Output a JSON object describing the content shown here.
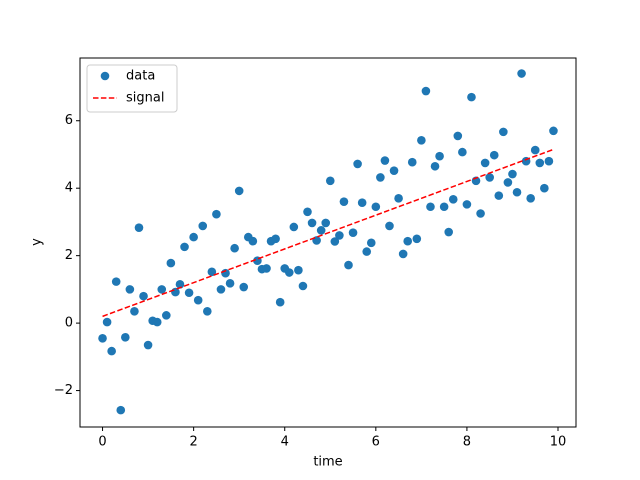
{
  "chart_data": {
    "type": "scatter",
    "xlabel": "time",
    "ylabel": "y",
    "xlim": [
      -0.495,
      10.395
    ],
    "ylim": [
      -3.08,
      7.86
    ],
    "xticks": [
      0,
      2,
      4,
      6,
      8,
      10
    ],
    "yticks": [
      {
        "value": -2,
        "label": "−2"
      },
      0,
      2,
      4,
      6
    ],
    "legend": "upper left",
    "series": [
      {
        "name": "data",
        "color": "#1f77b4",
        "marker": "o",
        "x": [
          0,
          0.1,
          0.2,
          0.3,
          0.4,
          0.5,
          0.6,
          0.7,
          0.8,
          0.9,
          1,
          1.1,
          1.2,
          1.3,
          1.4,
          1.5,
          1.6,
          1.7,
          1.8,
          1.9,
          2,
          2.1,
          2.2,
          2.3,
          2.4,
          2.5,
          2.6,
          2.7,
          2.8,
          2.9,
          3,
          3.1,
          3.2,
          3.3,
          3.4,
          3.5,
          3.6,
          3.7,
          3.8,
          3.9,
          4,
          4.1,
          4.2,
          4.3,
          4.4,
          4.5,
          4.6,
          4.7,
          4.8,
          4.9,
          5,
          5.1,
          5.2,
          5.3,
          5.4,
          5.5,
          5.6,
          5.7,
          5.8,
          5.9,
          6,
          6.1,
          6.2,
          6.3,
          6.4,
          6.5,
          6.6,
          6.7,
          6.8,
          6.9,
          7,
          7.1,
          7.2,
          7.3,
          7.4,
          7.5,
          7.6,
          7.7,
          7.8,
          7.9,
          8,
          8.1,
          8.2,
          8.3,
          8.4,
          8.5,
          8.6,
          8.7,
          8.8,
          8.9,
          9,
          9.1,
          9.2,
          9.3,
          9.4,
          9.5,
          9.6,
          9.7,
          9.8,
          9.9
        ],
        "values": [
          -0.45,
          0.03,
          -0.83,
          1.23,
          -2.58,
          -0.42,
          1.0,
          0.35,
          2.83,
          0.8,
          -0.65,
          0.07,
          0.03,
          1.0,
          0.23,
          1.78,
          0.92,
          1.15,
          2.26,
          0.9,
          2.55,
          0.68,
          2.88,
          0.35,
          1.52,
          3.23,
          1.0,
          1.48,
          1.18,
          2.22,
          3.92,
          1.07,
          2.55,
          2.43,
          1.85,
          1.6,
          1.62,
          2.43,
          2.5,
          0.62,
          1.62,
          1.5,
          2.85,
          1.57,
          1.1,
          3.3,
          2.97,
          2.45,
          2.75,
          2.97,
          4.22,
          2.42,
          2.6,
          3.6,
          1.72,
          2.68,
          4.72,
          3.57,
          2.12,
          2.38,
          3.45,
          4.32,
          4.82,
          2.88,
          4.52,
          3.7,
          2.05,
          2.43,
          4.77,
          2.5,
          5.42,
          6.88,
          3.45,
          4.65,
          4.95,
          3.45,
          2.7,
          3.67,
          5.55,
          5.07,
          3.52,
          6.7,
          4.22,
          3.25,
          4.75,
          4.32,
          4.98,
          3.78,
          5.67,
          4.17,
          4.42,
          3.88,
          7.4,
          4.8,
          3.7,
          5.13,
          4.75,
          4.0,
          4.8,
          5.7
        ]
      },
      {
        "name": "signal",
        "color": "#ff0000",
        "linestyle": "dashed",
        "x": [
          0,
          9.9
        ],
        "values": [
          0.2,
          5.15
        ]
      }
    ]
  }
}
